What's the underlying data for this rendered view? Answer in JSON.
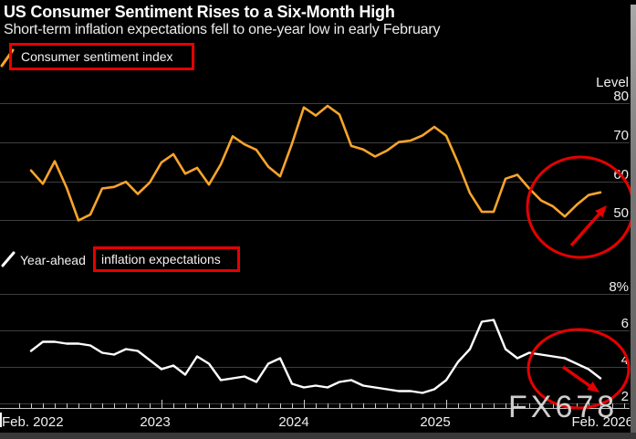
{
  "header": {
    "title": "US Consumer Sentiment Rises to a Six-Month High",
    "subtitle": "Short-term inflation expectations fell to one-year low in early February"
  },
  "watermark": "FX678",
  "colors": {
    "background": "#000000",
    "sentiment_line": "#f8a42a",
    "inflation_line": "#ffffff",
    "annotation_red": "#e60000",
    "gridline": "#3e3e3e",
    "text": "#f0f0f0"
  },
  "x_axis": {
    "labels": [
      "Feb. 2022",
      "2023",
      "2024",
      "2025",
      "Feb. 2026"
    ]
  },
  "chart_data": [
    {
      "type": "line",
      "title": "Consumer sentiment index",
      "legend_prefix": "",
      "legend_boxed": "Consumer sentiment index",
      "axis_header": "Level",
      "ytick_labels": [
        "80",
        "70",
        "60",
        "50"
      ],
      "ytick_values": [
        80,
        70,
        60,
        50
      ],
      "ylim": [
        45,
        85
      ],
      "legend_position": "top-left",
      "grid": true,
      "x": [
        "Feb 2022",
        "Mar 2022",
        "Apr 2022",
        "May 2022",
        "Jun 2022",
        "Jul 2022",
        "Aug 2022",
        "Sep 2022",
        "Oct 2022",
        "Nov 2022",
        "Dec 2022",
        "Jan 2023",
        "Feb 2023",
        "Mar 2023",
        "Apr 2023",
        "May 2023",
        "Jun 2023",
        "Jul 2023",
        "Aug 2023",
        "Sep 2023",
        "Oct 2023",
        "Nov 2023",
        "Dec 2023",
        "Jan 2024",
        "Feb 2024",
        "Mar 2024",
        "Apr 2024",
        "May 2024",
        "Jun 2024",
        "Jul 2024",
        "Aug 2024",
        "Sep 2024",
        "Oct 2024",
        "Nov 2024",
        "Dec 2024",
        "Jan 2025",
        "Feb 2025",
        "Mar 2025",
        "Apr 2025",
        "May 2025",
        "Jun 2025",
        "Jul 2025",
        "Aug 2025",
        "Sep 2025",
        "Oct 2025",
        "Nov 2025",
        "Dec 2025",
        "Jan 2026",
        "Feb 2026"
      ],
      "values": [
        62.8,
        59.4,
        65.2,
        58.4,
        50.0,
        51.5,
        58.2,
        58.6,
        59.9,
        56.8,
        59.7,
        64.9,
        67.0,
        62.0,
        63.5,
        59.2,
        64.4,
        71.6,
        69.5,
        68.1,
        63.8,
        61.3,
        69.7,
        79.0,
        76.9,
        79.4,
        77.2,
        69.1,
        68.2,
        66.4,
        67.9,
        70.1,
        70.5,
        71.8,
        74.0,
        71.7,
        64.7,
        57.0,
        52.2,
        52.2,
        60.7,
        61.7,
        58.2,
        55.1,
        53.6,
        51.0,
        54.0,
        56.5,
        57.2
      ]
    },
    {
      "type": "line",
      "title": "Year-ahead inflation expectations",
      "legend_prefix": "Year-ahead",
      "legend_boxed": "inflation expectations",
      "axis_header": "8%",
      "ytick_labels": [
        "8%",
        "6",
        "4",
        "2"
      ],
      "ytick_values": [
        8,
        6,
        4,
        2
      ],
      "ylim": [
        1.5,
        8.5
      ],
      "legend_position": "top-left",
      "grid": true,
      "x": [
        "Feb 2022",
        "Mar 2022",
        "Apr 2022",
        "May 2022",
        "Jun 2022",
        "Jul 2022",
        "Aug 2022",
        "Sep 2022",
        "Oct 2022",
        "Nov 2022",
        "Dec 2022",
        "Jan 2023",
        "Feb 2023",
        "Mar 2023",
        "Apr 2023",
        "May 2023",
        "Jun 2023",
        "Jul 2023",
        "Aug 2023",
        "Sep 2023",
        "Oct 2023",
        "Nov 2023",
        "Dec 2023",
        "Jan 2024",
        "Feb 2024",
        "Mar 2024",
        "Apr 2024",
        "May 2024",
        "Jun 2024",
        "Jul 2024",
        "Aug 2024",
        "Sep 2024",
        "Oct 2024",
        "Nov 2024",
        "Dec 2024",
        "Jan 2025",
        "Feb 2025",
        "Mar 2025",
        "Apr 2025",
        "May 2025",
        "Jun 2025",
        "Jul 2025",
        "Aug 2025",
        "Sep 2025",
        "Oct 2025",
        "Nov 2025",
        "Dec 2025",
        "Jan 2026",
        "Feb 2026"
      ],
      "values": [
        4.9,
        5.4,
        5.4,
        5.3,
        5.3,
        5.2,
        4.8,
        4.7,
        5.0,
        4.9,
        4.4,
        3.9,
        4.1,
        3.6,
        4.6,
        4.2,
        3.3,
        3.4,
        3.5,
        3.2,
        4.2,
        4.5,
        3.1,
        2.9,
        3.0,
        2.9,
        3.2,
        3.3,
        3.0,
        2.9,
        2.8,
        2.7,
        2.7,
        2.6,
        2.8,
        3.3,
        4.3,
        5.0,
        6.5,
        6.6,
        5.0,
        4.5,
        4.8,
        4.7,
        4.6,
        4.5,
        4.2,
        3.9,
        3.4
      ]
    }
  ]
}
